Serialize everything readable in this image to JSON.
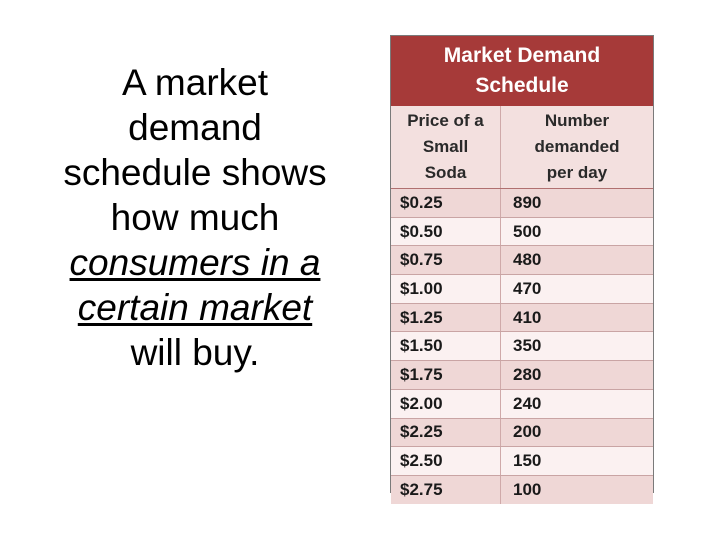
{
  "slide": {
    "text": {
      "line1": "A market",
      "line2": "demand",
      "line3": "schedule shows",
      "line4": "how much",
      "line5": "consumers in a",
      "line6": "certain market",
      "line7": "will buy."
    }
  },
  "table": {
    "title_line1": "Market Demand",
    "title_line2": "Schedule",
    "header_price": [
      "Price of a",
      "Small",
      "Soda"
    ],
    "header_qty": [
      "Number",
      "demanded",
      "per day"
    ],
    "rows": [
      {
        "price": "$0.25",
        "qty": "890"
      },
      {
        "price": "$0.50",
        "qty": "500"
      },
      {
        "price": "$0.75",
        "qty": "480"
      },
      {
        "price": "$1.00",
        "qty": "470"
      },
      {
        "price": "$1.25",
        "qty": "410"
      },
      {
        "price": "$1.50",
        "qty": "350"
      },
      {
        "price": "$1.75",
        "qty": "280"
      },
      {
        "price": "$2.00",
        "qty": "240"
      },
      {
        "price": "$2.25",
        "qty": "200"
      },
      {
        "price": "$2.50",
        "qty": "150"
      },
      {
        "price": "$2.75",
        "qty": "100"
      }
    ],
    "colors": {
      "title_bg": "#a63a39",
      "header_bg": "#f3e0df",
      "row_dark": "#efd7d6",
      "row_light": "#fbf1f1"
    }
  }
}
